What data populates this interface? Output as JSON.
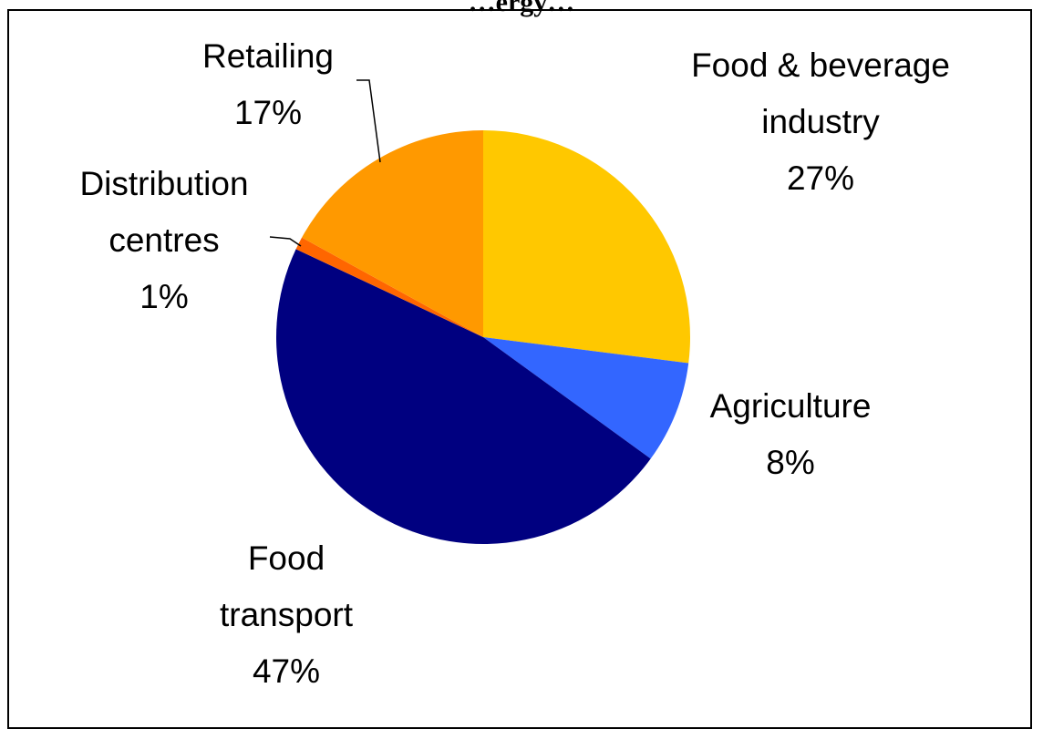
{
  "chart_data": {
    "type": "pie",
    "title": "…ergy…",
    "colors": {
      "food_beverage": "#FFC800",
      "agriculture": "#3366FF",
      "food_transport": "#000080",
      "distribution": "#FF6600",
      "retailing": "#FF9900"
    },
    "slices": [
      {
        "name": "Food & beverage industry",
        "label_lines": [
          "Food & beverage",
          "industry"
        ],
        "value": 27,
        "pct": "27%",
        "color": "#FFC800"
      },
      {
        "name": "Agriculture",
        "label_lines": [
          "Agriculture"
        ],
        "value": 8,
        "pct": "8%",
        "color": "#3366FF"
      },
      {
        "name": "Food transport",
        "label_lines": [
          "Food",
          "transport"
        ],
        "value": 47,
        "pct": "47%",
        "color": "#000080"
      },
      {
        "name": "Distribution centres",
        "label_lines": [
          "Distribution",
          "centres"
        ],
        "value": 1,
        "pct": "1%",
        "color": "#FF6600"
      },
      {
        "name": "Retailing",
        "label_lines": [
          "Retailing"
        ],
        "value": 17,
        "pct": "17%",
        "color": "#FF9900"
      }
    ]
  }
}
